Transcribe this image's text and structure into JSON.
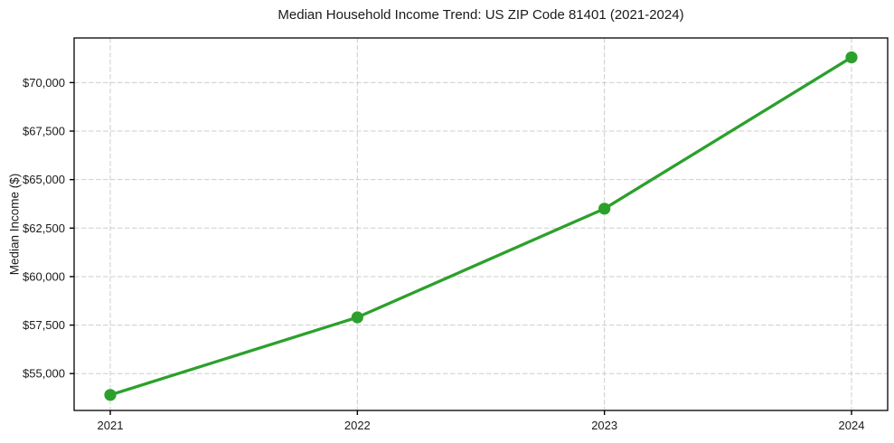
{
  "chart_data": {
    "type": "line",
    "title": "Median Household Income Trend: US ZIP Code 81401 (2021-2024)",
    "xlabel": "",
    "ylabel": "Median Income ($)",
    "categories": [
      "2021",
      "2022",
      "2023",
      "2024"
    ],
    "series": [
      {
        "name": "Median Household Income",
        "color": "#2ca02c",
        "marker": "circle",
        "values": [
          53900,
          57900,
          63500,
          71300
        ]
      }
    ],
    "yticks": {
      "values": [
        55000,
        57500,
        60000,
        62500,
        65000,
        67500,
        70000
      ],
      "labels": [
        "$55,000",
        "$57,500",
        "$60,000",
        "$62,500",
        "$65,000",
        "$67,500",
        "$70,000"
      ]
    },
    "ylim": [
      53100,
      72300
    ],
    "grid": {
      "show": true,
      "style": "dashed",
      "color": "#cdcdcd"
    },
    "legend_position": "none",
    "colors": {
      "axis": "#000000",
      "tick_text": "#1a1a1a",
      "background": "#ffffff"
    }
  }
}
